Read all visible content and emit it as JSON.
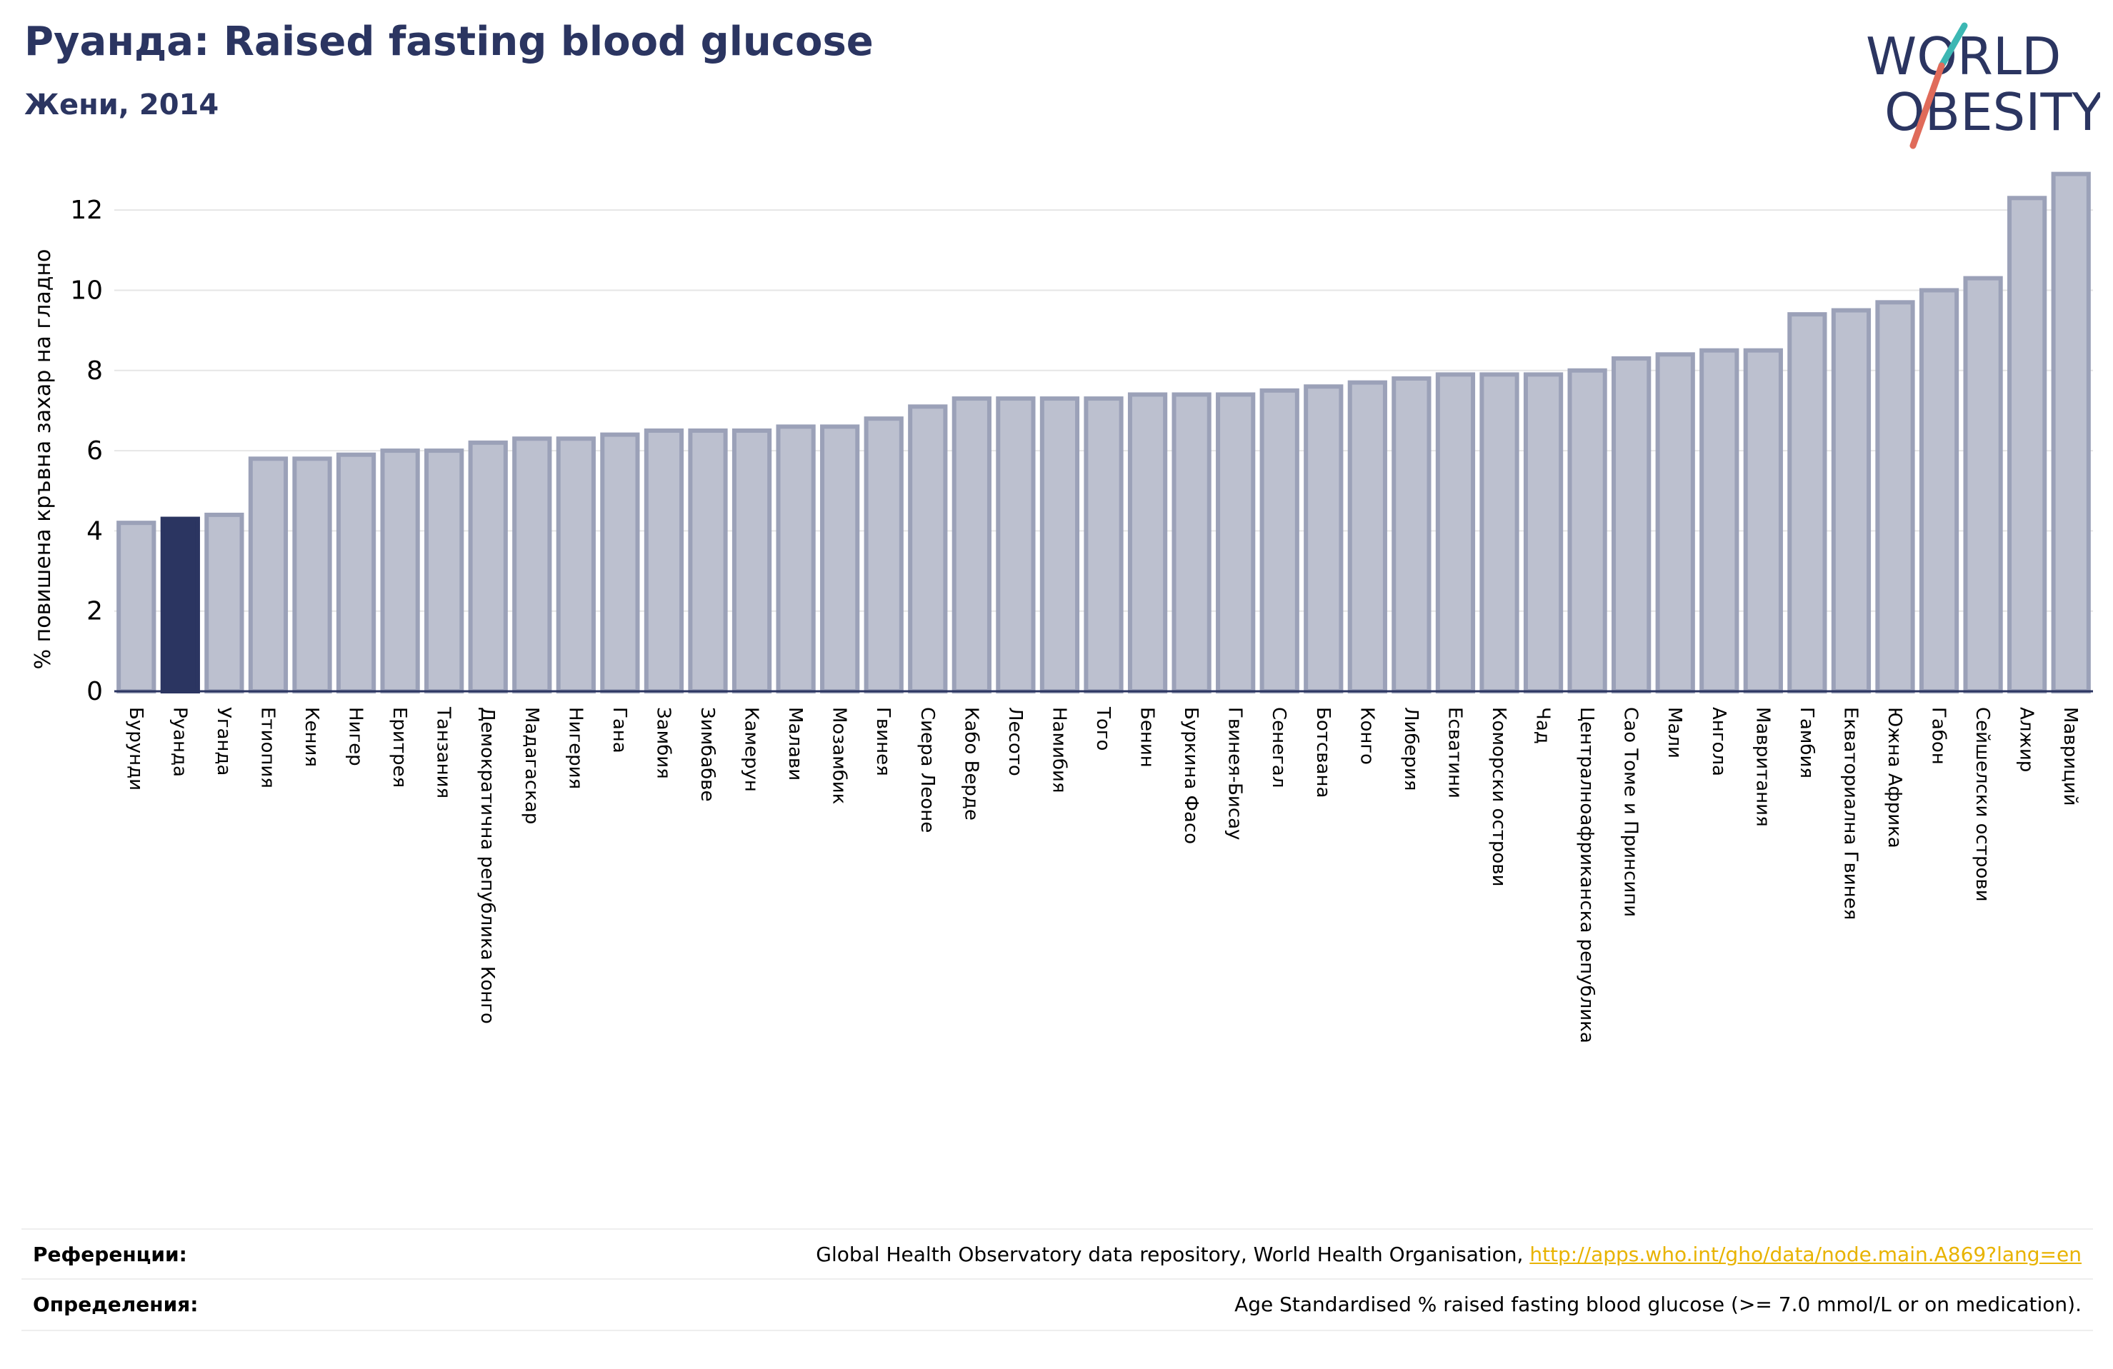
{
  "header": {
    "title": "Руанда: Raised fasting blood glucose",
    "subtitle": "Жени, 2014"
  },
  "logo": {
    "line1": "WORLD",
    "line2": "OBESITY",
    "colors": {
      "text": "#2b3561",
      "slash_top": "#3cb7b3",
      "slash_bottom": "#e06b5a"
    }
  },
  "colors": {
    "highlight_bar": "#2b3561",
    "bar_fill": "#bcc0cf",
    "bar_stroke": "#9ba1b8",
    "axis": "#2b3561",
    "grid": "#e6e6e6",
    "link": "#e8b300"
  },
  "chart_data": {
    "type": "bar",
    "title": "",
    "xlabel": "",
    "ylabel": "% повишена кръвна захар на гладно",
    "ylim": [
      0,
      13
    ],
    "yticks": [
      0,
      2,
      4,
      6,
      8,
      10,
      12
    ],
    "grid": true,
    "highlight": "Руанда",
    "categories": [
      "Бурунди",
      "Руанда",
      "Уганда",
      "Етиопия",
      "Кения",
      "Нигер",
      "Еритрея",
      "Танзания",
      "Демократична република Конго",
      "Мадагаскар",
      "Нигерия",
      "Гана",
      "Замбия",
      "Зимбабве",
      "Камерун",
      "Малави",
      "Мозамбик",
      "Гвинея",
      "Сиера Леоне",
      "Кабо Верде",
      "Лесото",
      "Намибия",
      "Того",
      "Бенин",
      "Буркина Фасо",
      "Гвинея-Бисау",
      "Сенегал",
      "Ботсвана",
      "Конго",
      "Либерия",
      "Есватини",
      "Коморски острови",
      "Чад",
      "Централноафриканска република",
      "Сао Томе и Принсипи",
      "Мали",
      "Ангола",
      "Мавритания",
      "Гамбия",
      "Екваториална Гвинея",
      "Южна Африка",
      "Габон",
      "Сейшелски острови",
      "Алжир",
      "Мавриций"
    ],
    "values": [
      4.2,
      4.3,
      4.4,
      5.8,
      5.8,
      5.9,
      6.0,
      6.0,
      6.2,
      6.3,
      6.3,
      6.4,
      6.5,
      6.5,
      6.5,
      6.6,
      6.6,
      6.8,
      7.1,
      7.3,
      7.3,
      7.3,
      7.3,
      7.4,
      7.4,
      7.4,
      7.5,
      7.6,
      7.7,
      7.8,
      7.9,
      7.9,
      7.9,
      8.0,
      8.3,
      8.4,
      8.5,
      8.5,
      9.4,
      9.5,
      9.7,
      10.0,
      10.3,
      12.3,
      12.9
    ]
  },
  "references": {
    "refs_label": "Референции:",
    "refs_text": "Global Health Observatory data repository, World Health Organisation, ",
    "refs_link": "http://apps.who.int/gho/data/node.main.A869?lang=en",
    "defs_label": "Определения:",
    "defs_text": "Age Standardised % raised fasting blood glucose (>= 7.0 mmol/L or on medication)."
  }
}
